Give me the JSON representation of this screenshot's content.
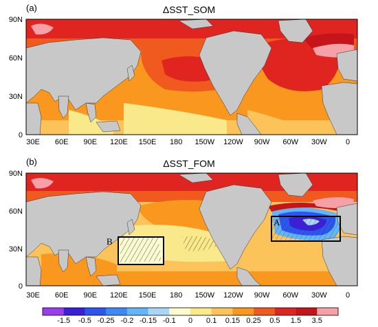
{
  "panels": [
    {
      "label": "(a)",
      "title": "ΔSST_SOM"
    },
    {
      "label": "(b)",
      "title": "ΔSST_FOM"
    }
  ],
  "lat_ticks": [
    "90N",
    "60N",
    "30N",
    "0"
  ],
  "lon_ticks": [
    "30E",
    "60E",
    "90E",
    "120E",
    "150E",
    "180",
    "150W",
    "120W",
    "90W",
    "60W",
    "30W",
    "0"
  ],
  "boxes": [
    {
      "label": "A"
    },
    {
      "label": "B"
    }
  ],
  "colorbar": {
    "labels": [
      "-1.5",
      "-0.5",
      "-0.25",
      "-0.2",
      "-0.15",
      "-0.1",
      "0",
      "0.1",
      "0.15",
      "0.25",
      "0.5",
      "1.5",
      "3.5"
    ],
    "colors": [
      "#9b3cf0",
      "#3c1fd9",
      "#2d55f0",
      "#3d88f5",
      "#63b5f7",
      "#a7d6f7",
      "#fbfbd0",
      "#f9e98a",
      "#fbc35a",
      "#f9971e",
      "#f05a1e",
      "#e02520",
      "#c5141a",
      "#f6a1a8"
    ]
  }
}
